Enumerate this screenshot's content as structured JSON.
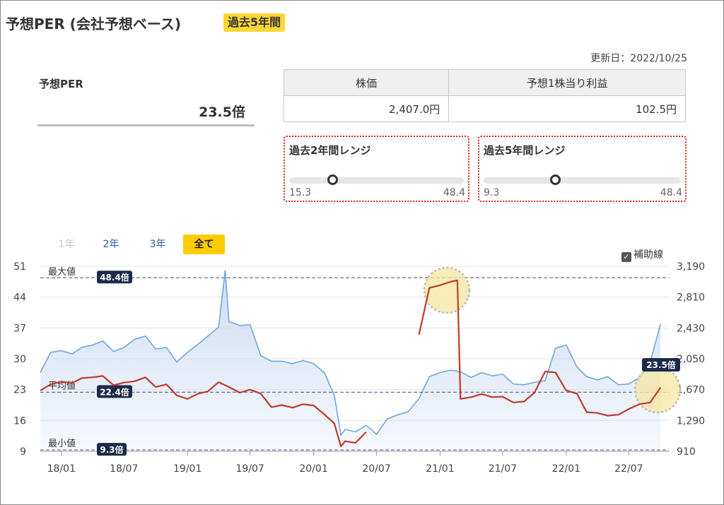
{
  "header": {
    "title": "予想PER (会社予想ベース)",
    "badge": "過去5年間",
    "updated": "更新日：2022/10/25"
  },
  "per": {
    "label": "予想PER",
    "value": "23.5倍"
  },
  "price_table": {
    "headers": [
      "株価",
      "予想1株当り利益"
    ],
    "values": [
      "2,407.0円",
      "102.5円"
    ]
  },
  "ranges": [
    {
      "title": "過去2年間レンジ",
      "min": "15.3",
      "max": "48.4",
      "current": 23.5
    },
    {
      "title": "過去5年間レンジ",
      "min": "9.3",
      "max": "48.4",
      "current": 23.5
    }
  ],
  "tabs": [
    {
      "label": "1年",
      "state": "disabled"
    },
    {
      "label": "2年",
      "state": "link"
    },
    {
      "label": "3年",
      "state": "link"
    },
    {
      "label": "全て",
      "state": "active"
    }
  ],
  "aux_checkbox": {
    "label": "補助線",
    "checked": true
  },
  "colors": {
    "per_line": "#c0392b",
    "price_line": "#6fa8dc",
    "price_fill": "#c9dbf2",
    "badge": "#ffd633",
    "ref_label_bg": "#1b2a4a",
    "highlight": "#f5e6a0"
  },
  "chart_data": {
    "type": "line",
    "x_ticks": [
      "18/01",
      "18/07",
      "19/01",
      "19/07",
      "20/01",
      "20/07",
      "21/01",
      "21/07",
      "22/01",
      "22/07"
    ],
    "y_left_ticks": [
      51,
      44,
      37,
      30,
      23,
      16,
      9
    ],
    "y_right_ticks": [
      "3,190",
      "2,810",
      "2,430",
      "2,050",
      "1,670",
      "1,290",
      "910"
    ],
    "y_left_range": [
      9,
      51
    ],
    "y_right_range": [
      910,
      3190
    ],
    "reference_lines": [
      {
        "name": "最大値",
        "value": 48.4,
        "label": "48.4倍"
      },
      {
        "name": "平均値",
        "value": 22.4,
        "label": "22.4倍"
      },
      {
        "name": "最小値",
        "value": 9.3,
        "label": "9.3倍"
      }
    ],
    "current_label": "23.5倍",
    "series": [
      {
        "axis": "right",
        "area": true,
        "x": [
          "2017-11",
          "2017-12",
          "2018-01",
          "2018-02",
          "2018-03",
          "2018-04",
          "2018-05",
          "2018-06",
          "2018-07",
          "2018-08",
          "2018-09",
          "2018-10",
          "2018-11",
          "2018-12",
          "2019-01",
          "2019-02",
          "2019-03",
          "2019-04",
          "2019-04-20",
          "2019-05",
          "2019-06",
          "2019-07",
          "2019-08",
          "2019-09",
          "2019-10",
          "2019-11",
          "2019-12",
          "2020-01",
          "2020-02",
          "2020-03",
          "2020-03-20",
          "2020-04",
          "2020-05",
          "2020-06",
          "2020-07",
          "2020-08",
          "2020-09",
          "2020-10",
          "2020-11",
          "2020-12",
          "2021-01",
          "2021-02",
          "2021-03",
          "2021-04",
          "2021-05",
          "2021-06",
          "2021-07",
          "2021-08",
          "2021-09",
          "2021-10",
          "2021-11",
          "2021-12",
          "2022-01",
          "2022-02",
          "2022-03",
          "2022-04",
          "2022-05",
          "2022-06",
          "2022-07",
          "2022-08",
          "2022-09",
          "2022-10"
        ],
        "y": [
          1880,
          2130,
          2150,
          2110,
          2190,
          2220,
          2270,
          2140,
          2190,
          2290,
          2330,
          2170,
          2190,
          2010,
          2130,
          2230,
          2330,
          2440,
          3140,
          2510,
          2460,
          2470,
          2090,
          2020,
          2020,
          1990,
          2030,
          1990,
          1880,
          1600,
          1110,
          1180,
          1150,
          1230,
          1120,
          1310,
          1360,
          1400,
          1560,
          1830,
          1880,
          1910,
          1890,
          1820,
          1880,
          1840,
          1860,
          1740,
          1730,
          1760,
          1780,
          2180,
          2220,
          1950,
          1830,
          1790,
          1830,
          1730,
          1740,
          1820,
          2010,
          2480
        ]
      },
      {
        "axis": "left",
        "segments": [
          {
            "x": [
              "2017-11",
              "2017-12",
              "2018-01",
              "2018-02",
              "2018-03",
              "2018-04",
              "2018-05",
              "2018-06",
              "2018-07",
              "2018-08",
              "2018-09",
              "2018-10",
              "2018-11",
              "2018-12",
              "2019-01",
              "2019-02",
              "2019-03",
              "2019-04",
              "2019-05",
              "2019-06",
              "2019-07",
              "2019-08",
              "2019-09",
              "2019-10",
              "2019-11",
              "2019-12",
              "2020-01",
              "2020-02",
              "2020-03",
              "2020-03-20",
              "2020-04",
              "2020-05",
              "2020-06"
            ],
            "y": [
              22.8,
              24.2,
              24.8,
              24.5,
              25.6,
              25.8,
              26.1,
              24.0,
              24.6,
              24.9,
              25.8,
              23.6,
              24.2,
              21.7,
              20.9,
              22.1,
              22.6,
              24.7,
              23.6,
              22.3,
              23.0,
              22.1,
              19.0,
              19.5,
              18.9,
              19.7,
              19.4,
              17.4,
              15.3,
              10.1,
              11.3,
              10.9,
              13.4
            ]
          },
          {
            "x": [
              "2020-11",
              "2020-12",
              "2021-01",
              "2021-02",
              "2021-02-20",
              "2021-03",
              "2021-04",
              "2021-05",
              "2021-06",
              "2021-07",
              "2021-08",
              "2021-09",
              "2021-10",
              "2021-11",
              "2021-12",
              "2022-01",
              "2022-02",
              "2022-03",
              "2022-04",
              "2022-05",
              "2022-06",
              "2022-07",
              "2022-08",
              "2022-09",
              "2022-10"
            ],
            "y": [
              35.5,
              46.1,
              46.7,
              47.5,
              47.8,
              20.9,
              21.3,
              22.0,
              21.3,
              21.4,
              20.1,
              20.3,
              22.3,
              27.1,
              26.9,
              22.8,
              22.1,
              17.9,
              17.7,
              17.1,
              17.3,
              18.6,
              19.7,
              20.1,
              23.5
            ]
          }
        ]
      }
    ]
  }
}
